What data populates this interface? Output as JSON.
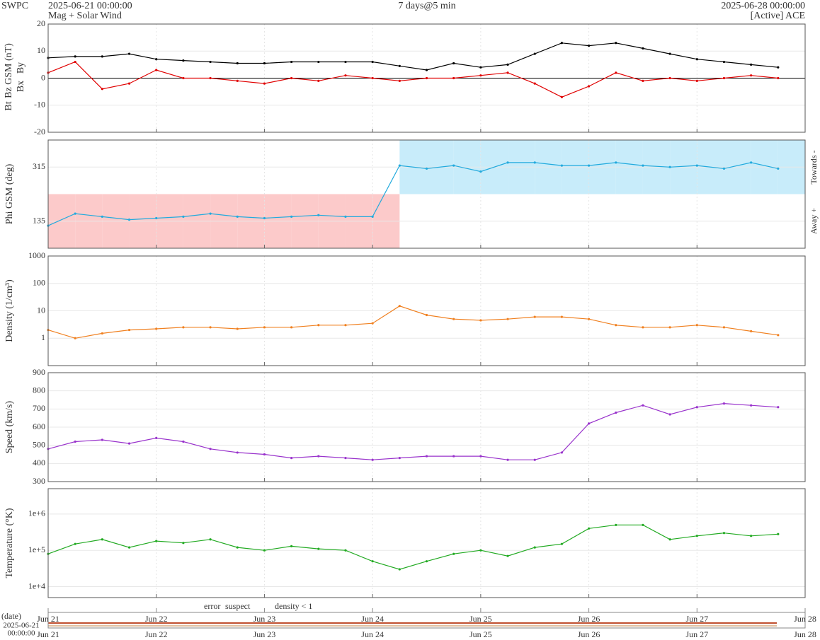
{
  "header": {
    "org": "SWPC",
    "start": "2025-06-21 00:00:00",
    "subtitle": "Mag + Solar Wind",
    "span": "7 days@5 min",
    "end": "2025-06-28 00:00:00",
    "source": "[Active] ACE"
  },
  "time_axis": {
    "label": "(date)",
    "start": [
      "2025-06-21",
      "00:00:00"
    ],
    "xlim": [
      "2025-06-21T00:00",
      "2025-06-28T00:00"
    ],
    "xticks": [
      {
        "value": "2025-06-21T00:00",
        "label": "Jun 21"
      },
      {
        "value": "2025-06-22T00:00",
        "label": "Jun 22"
      },
      {
        "value": "2025-06-23T00:00",
        "label": "Jun 23"
      },
      {
        "value": "2025-06-24T00:00",
        "label": "Jun 24"
      },
      {
        "value": "2025-06-25T00:00",
        "label": "Jun 25"
      },
      {
        "value": "2025-06-26T00:00",
        "label": "Jun 26"
      },
      {
        "value": "2025-06-27T00:00",
        "label": "Jun 27"
      },
      {
        "value": "2025-06-28T00:00",
        "label": "Jun 28"
      }
    ]
  },
  "quality_legend": [
    {
      "text": "error",
      "color": "#e00000"
    },
    {
      "text": "suspect",
      "color": "#e8c000"
    },
    {
      "text": "density < 1",
      "color": "#f08020"
    }
  ],
  "chart_data": [
    {
      "type": "line",
      "ylabels": [
        {
          "text": "Bt",
          "color": "#000000"
        },
        {
          "text": "Bz GSM (nT)",
          "color": "#e00000"
        },
        {
          "text": "Bx",
          "color": "#9933cc"
        },
        {
          "text": "By",
          "color": "#22aadd"
        }
      ],
      "ylim": [
        -20,
        20
      ],
      "yticks": [
        -20,
        -10,
        0,
        10,
        20
      ],
      "log": false,
      "zero_line": true,
      "x": [
        "2025-06-21T00:00",
        "2025-06-21T06:00",
        "2025-06-21T12:00",
        "2025-06-21T18:00",
        "2025-06-22T00:00",
        "2025-06-22T06:00",
        "2025-06-22T12:00",
        "2025-06-22T18:00",
        "2025-06-23T00:00",
        "2025-06-23T06:00",
        "2025-06-23T12:00",
        "2025-06-23T18:00",
        "2025-06-24T00:00",
        "2025-06-24T06:00",
        "2025-06-24T12:00",
        "2025-06-24T18:00",
        "2025-06-25T00:00",
        "2025-06-25T06:00",
        "2025-06-25T12:00",
        "2025-06-25T18:00",
        "2025-06-26T00:00",
        "2025-06-26T06:00",
        "2025-06-26T12:00",
        "2025-06-26T18:00",
        "2025-06-27T00:00",
        "2025-06-27T06:00",
        "2025-06-27T12:00",
        "2025-06-27T18:00"
      ],
      "series": [
        {
          "name": "Bt",
          "color": "#000000",
          "values": [
            7.5,
            8,
            8,
            9,
            7,
            6.5,
            6,
            5.5,
            5.5,
            6,
            6,
            6,
            6,
            4.5,
            3,
            5.5,
            4,
            5,
            9,
            13,
            12,
            13,
            11,
            9,
            7,
            6,
            5,
            4
          ]
        },
        {
          "name": "Bz",
          "color": "#e00000",
          "values": [
            2,
            6,
            -4,
            -2,
            3,
            0,
            0,
            -1,
            -2,
            0,
            -1,
            1,
            0,
            -1,
            0,
            0,
            1,
            2,
            -2,
            -7,
            -3,
            2,
            -1,
            0,
            -1,
            0,
            1,
            0
          ]
        }
      ]
    },
    {
      "type": "phi",
      "ylabels": [
        {
          "text": "Phi GSM (deg)",
          "color": "#22aadd"
        }
      ],
      "right_labels": [
        "Towards -",
        "Away +"
      ],
      "ylim": [
        45,
        405
      ],
      "yticks": [
        135,
        315
      ],
      "log": false,
      "x": [
        "2025-06-21T00:00",
        "2025-06-21T06:00",
        "2025-06-21T12:00",
        "2025-06-21T18:00",
        "2025-06-22T00:00",
        "2025-06-22T06:00",
        "2025-06-22T12:00",
        "2025-06-22T18:00",
        "2025-06-23T00:00",
        "2025-06-23T06:00",
        "2025-06-23T12:00",
        "2025-06-23T18:00",
        "2025-06-24T00:00",
        "2025-06-24T06:00",
        "2025-06-24T12:00",
        "2025-06-24T18:00",
        "2025-06-25T00:00",
        "2025-06-25T06:00",
        "2025-06-25T12:00",
        "2025-06-25T18:00",
        "2025-06-26T00:00",
        "2025-06-26T06:00",
        "2025-06-26T12:00",
        "2025-06-26T18:00",
        "2025-06-27T00:00",
        "2025-06-27T06:00",
        "2025-06-27T12:00",
        "2025-06-27T18:00"
      ],
      "series": [
        {
          "name": "Phi",
          "color": "#22aadd",
          "values": [
            120,
            160,
            150,
            140,
            145,
            150,
            160,
            150,
            145,
            150,
            155,
            150,
            150,
            320,
            310,
            320,
            300,
            330,
            330,
            320,
            320,
            330,
            320,
            315,
            320,
            310,
            330,
            310
          ]
        }
      ],
      "shade_colors": [
        "#c8ecfa",
        "#fccaca"
      ]
    },
    {
      "type": "line",
      "ylabels": [
        {
          "text": "Density (1/cm³)",
          "color": "#f08020"
        }
      ],
      "ylim": [
        0.1,
        1000
      ],
      "yticks": [
        1,
        10,
        100,
        1000
      ],
      "log": true,
      "x": [
        "2025-06-21T00:00",
        "2025-06-21T06:00",
        "2025-06-21T12:00",
        "2025-06-21T18:00",
        "2025-06-22T00:00",
        "2025-06-22T06:00",
        "2025-06-22T12:00",
        "2025-06-22T18:00",
        "2025-06-23T00:00",
        "2025-06-23T06:00",
        "2025-06-23T12:00",
        "2025-06-23T18:00",
        "2025-06-24T00:00",
        "2025-06-24T06:00",
        "2025-06-24T12:00",
        "2025-06-24T18:00",
        "2025-06-25T00:00",
        "2025-06-25T06:00",
        "2025-06-25T12:00",
        "2025-06-25T18:00",
        "2025-06-26T00:00",
        "2025-06-26T06:00",
        "2025-06-26T12:00",
        "2025-06-26T18:00",
        "2025-06-27T00:00",
        "2025-06-27T06:00",
        "2025-06-27T12:00",
        "2025-06-27T18:00"
      ],
      "series": [
        {
          "name": "Density",
          "color": "#f08020",
          "values": [
            2,
            1,
            1.5,
            2,
            2.2,
            2.5,
            2.5,
            2.2,
            2.5,
            2.5,
            3,
            3,
            3.5,
            15,
            7,
            5,
            4.5,
            5,
            6,
            6,
            5,
            3,
            2.5,
            2.5,
            3,
            2.5,
            1.8,
            1.3
          ]
        }
      ]
    },
    {
      "type": "line",
      "ylabels": [
        {
          "text": "Speed (km/s)",
          "color": "#9933cc"
        }
      ],
      "ylim": [
        300,
        900
      ],
      "yticks": [
        300,
        400,
        500,
        600,
        700,
        800,
        900
      ],
      "log": false,
      "x": [
        "2025-06-21T00:00",
        "2025-06-21T06:00",
        "2025-06-21T12:00",
        "2025-06-21T18:00",
        "2025-06-22T00:00",
        "2025-06-22T06:00",
        "2025-06-22T12:00",
        "2025-06-22T18:00",
        "2025-06-23T00:00",
        "2025-06-23T06:00",
        "2025-06-23T12:00",
        "2025-06-23T18:00",
        "2025-06-24T00:00",
        "2025-06-24T06:00",
        "2025-06-24T12:00",
        "2025-06-24T18:00",
        "2025-06-25T00:00",
        "2025-06-25T06:00",
        "2025-06-25T12:00",
        "2025-06-25T18:00",
        "2025-06-26T00:00",
        "2025-06-26T06:00",
        "2025-06-26T12:00",
        "2025-06-26T18:00",
        "2025-06-27T00:00",
        "2025-06-27T06:00",
        "2025-06-27T12:00",
        "2025-06-27T18:00"
      ],
      "series": [
        {
          "name": "Speed",
          "color": "#9933cc",
          "values": [
            480,
            520,
            530,
            510,
            540,
            520,
            480,
            460,
            450,
            430,
            440,
            430,
            420,
            430,
            440,
            440,
            440,
            420,
            420,
            460,
            620,
            680,
            720,
            670,
            710,
            730,
            720,
            710
          ]
        }
      ]
    },
    {
      "type": "line",
      "ylabels": [
        {
          "text": "Temperature (°K)",
          "color": "#22aa22"
        }
      ],
      "ylim": [
        5000,
        5000000
      ],
      "yticks": [
        {
          "value": 10000,
          "label": "1e+4"
        },
        {
          "value": 100000,
          "label": "1e+5"
        },
        {
          "value": 1000000,
          "label": "1e+6"
        }
      ],
      "log": true,
      "x": [
        "2025-06-21T00:00",
        "2025-06-21T06:00",
        "2025-06-21T12:00",
        "2025-06-21T18:00",
        "2025-06-22T00:00",
        "2025-06-22T06:00",
        "2025-06-22T12:00",
        "2025-06-22T18:00",
        "2025-06-23T00:00",
        "2025-06-23T06:00",
        "2025-06-23T12:00",
        "2025-06-23T18:00",
        "2025-06-24T00:00",
        "2025-06-24T06:00",
        "2025-06-24T12:00",
        "2025-06-24T18:00",
        "2025-06-25T00:00",
        "2025-06-25T06:00",
        "2025-06-25T12:00",
        "2025-06-25T18:00",
        "2025-06-26T00:00",
        "2025-06-26T06:00",
        "2025-06-26T12:00",
        "2025-06-26T18:00",
        "2025-06-27T00:00",
        "2025-06-27T06:00",
        "2025-06-27T12:00",
        "2025-06-27T18:00"
      ],
      "series": [
        {
          "name": "Temperature",
          "color": "#22aa22",
          "values": [
            80000,
            150000,
            200000,
            120000,
            180000,
            160000,
            200000,
            120000,
            100000,
            130000,
            110000,
            100000,
            50000,
            30000,
            50000,
            80000,
            100000,
            70000,
            120000,
            150000,
            400000,
            500000,
            500000,
            200000,
            250000,
            300000,
            250000,
            280000
          ]
        }
      ]
    }
  ]
}
